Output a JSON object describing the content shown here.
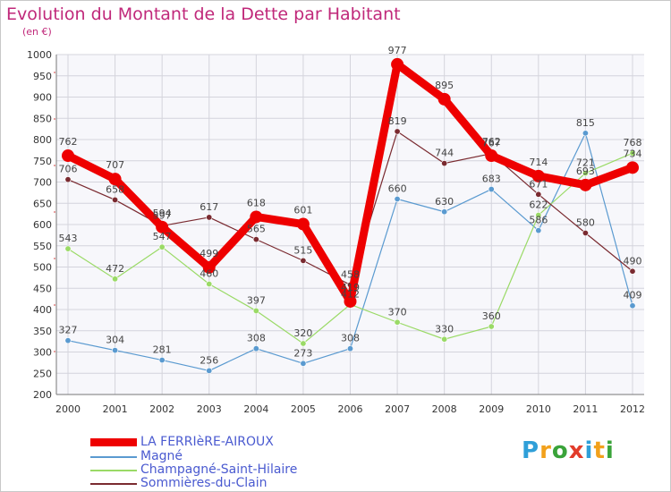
{
  "title": "Evolution du Montant de la Dette par Habitant",
  "subtitle": "(en €)",
  "logo": {
    "text": "Proxiti",
    "letter_colors": [
      "#2f9fd8",
      "#f2a11c",
      "#3aa33a",
      "#e23c2b",
      "#2f9fd8",
      "#f2a11c",
      "#3aa33a"
    ]
  },
  "chart_data": {
    "type": "line",
    "x": [
      "2000",
      "2001",
      "2002",
      "2003",
      "2004",
      "2005",
      "2006",
      "2007",
      "2008",
      "2009",
      "2010",
      "2011",
      "2012"
    ],
    "ylim": [
      200,
      1000
    ],
    "yticks": [
      200,
      250,
      300,
      350,
      400,
      450,
      500,
      550,
      600,
      650,
      700,
      750,
      800,
      850,
      900,
      950,
      1000
    ],
    "grid": true,
    "legend_position": "bottom-left",
    "series": [
      {
        "name": "LA FERRIèRE-AIROUX",
        "color": "#ee0000",
        "width": 9,
        "values": [
          762,
          707,
          594,
          499,
          618,
          601,
          419,
          977,
          895,
          762,
          714,
          693,
          734
        ]
      },
      {
        "name": "Magné",
        "color": "#5a9ad0",
        "width": 1.2,
        "values": [
          327,
          304,
          281,
          256,
          308,
          273,
          308,
          660,
          630,
          683,
          586,
          815,
          409
        ]
      },
      {
        "name": "Champagné-Saint-Hilaire",
        "color": "#9ada66",
        "width": 1.2,
        "values": [
          543,
          472,
          547,
          460,
          397,
          320,
          412,
          370,
          330,
          360,
          622,
          721,
          768
        ]
      },
      {
        "name": "Sommières-du-Clain",
        "color": "#7a2a30",
        "width": 1.2,
        "values": [
          706,
          658,
          597,
          617,
          565,
          515,
          458,
          819,
          744,
          767,
          671,
          580,
          490
        ]
      }
    ]
  }
}
